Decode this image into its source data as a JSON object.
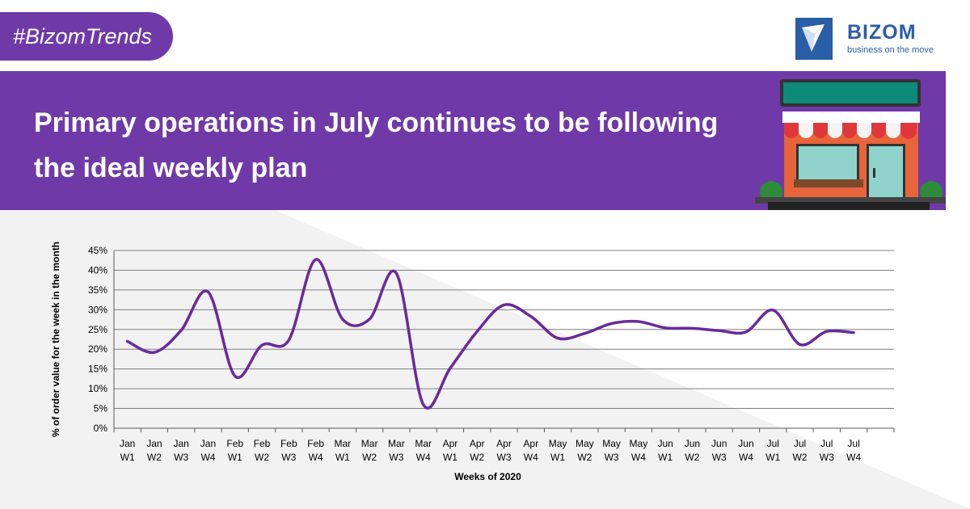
{
  "header": {
    "hashtag": "#BizomTrends",
    "brand_name": "BIZOM",
    "brand_tagline": "business on the move",
    "title": "Primary operations in July continues to be following the ideal weekly plan"
  },
  "colors": {
    "purple": "#6f3aa8",
    "brand_blue": "#2a5ea6",
    "line": "#6a2a9a",
    "grid": "#7f7f7f"
  },
  "icons": [
    "bizom-logo-icon",
    "storefront-illustration"
  ],
  "chart_data": {
    "type": "line",
    "title": "",
    "xlabel": "Weeks of 2020",
    "ylabel": "% of order value for the week in the month",
    "ylim": [
      0,
      45
    ],
    "yticks": [
      "0%",
      "5%",
      "10%",
      "15%",
      "20%",
      "25%",
      "30%",
      "35%",
      "40%",
      "45%"
    ],
    "grid": true,
    "legend": "none",
    "categories": [
      [
        "Jan",
        "W1"
      ],
      [
        "Jan",
        "W2"
      ],
      [
        "Jan",
        "W3"
      ],
      [
        "Jan",
        "W4"
      ],
      [
        "Feb",
        "W1"
      ],
      [
        "Feb",
        "W2"
      ],
      [
        "Feb",
        "W3"
      ],
      [
        "Feb",
        "W4"
      ],
      [
        "Mar",
        "W1"
      ],
      [
        "Mar",
        "W2"
      ],
      [
        "Mar",
        "W3"
      ],
      [
        "Mar",
        "W4"
      ],
      [
        "Apr",
        "W1"
      ],
      [
        "Apr",
        "W2"
      ],
      [
        "Apr",
        "W3"
      ],
      [
        "Apr",
        "W4"
      ],
      [
        "May",
        "W1"
      ],
      [
        "May",
        "W2"
      ],
      [
        "May",
        "W3"
      ],
      [
        "May",
        "W4"
      ],
      [
        "Jun",
        "W1"
      ],
      [
        "Jun",
        "W2"
      ],
      [
        "Jun",
        "W3"
      ],
      [
        "Jun",
        "W4"
      ],
      [
        "Jul",
        "W1"
      ],
      [
        "Jul",
        "W2"
      ],
      [
        "Jul",
        "W3"
      ],
      [
        "Jul",
        "W4"
      ]
    ],
    "values": [
      22,
      19.2,
      24.8,
      34.5,
      13.2,
      21,
      22.3,
      42.7,
      27.6,
      27.6,
      39.2,
      6,
      15.2,
      24.5,
      31.2,
      28.3,
      22.8,
      24,
      26.5,
      27,
      25.4,
      25.3,
      24.7,
      24.4,
      29.9,
      21.2,
      24.5,
      24.2
    ]
  }
}
